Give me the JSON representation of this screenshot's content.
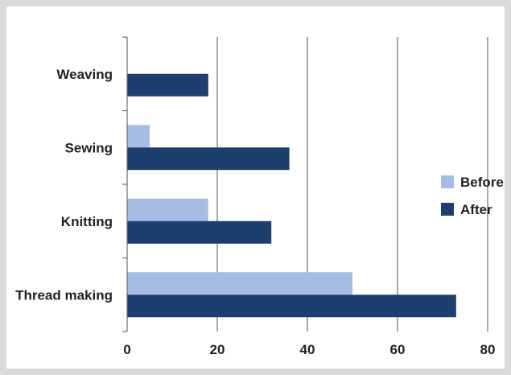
{
  "chart_data": {
    "type": "bar",
    "orientation": "horizontal",
    "title": "",
    "xlabel": "",
    "ylabel": "",
    "categories": [
      "Weaving",
      "Sewing",
      "Knitting",
      "Thread making"
    ],
    "series": [
      {
        "name": "Before",
        "color": "#a5bde3",
        "values": [
          0,
          5,
          18,
          50
        ]
      },
      {
        "name": "After",
        "color": "#1c3f6e",
        "values": [
          18,
          36,
          32,
          73
        ]
      }
    ],
    "xlim": [
      0,
      80
    ],
    "xticks": [
      "0",
      "20",
      "40",
      "60",
      "80"
    ],
    "grid": true,
    "legend": "right"
  }
}
